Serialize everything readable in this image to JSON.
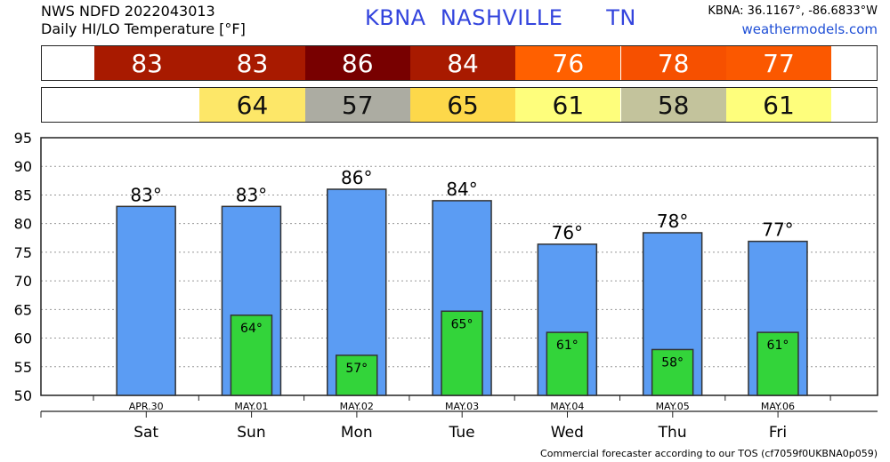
{
  "header": {
    "line1": "NWS NDFD 2022043013",
    "line2": "Daily HI/LO Temperature [°F]",
    "station": "KBNA",
    "city": "NASHVILLE",
    "state": "TN",
    "coords": "KBNA: 36.1167°, -86.6833°W",
    "site": "weathermodels.com"
  },
  "hi_strip": [
    {
      "value": "83",
      "color": "#a81a00"
    },
    {
      "value": "83",
      "color": "#a81a00"
    },
    {
      "value": "86",
      "color": "#780000"
    },
    {
      "value": "84",
      "color": "#a81a00"
    },
    {
      "value": "76",
      "color": "#ff6000"
    },
    {
      "value": "78",
      "color": "#f65000"
    },
    {
      "value": "77",
      "color": "#fb5800"
    }
  ],
  "lo_strip": [
    {
      "value": "",
      "color": "#ffffff"
    },
    {
      "value": "64",
      "color": "#fde768"
    },
    {
      "value": "57",
      "color": "#acaca2"
    },
    {
      "value": "65",
      "color": "#fdd84a"
    },
    {
      "value": "61",
      "color": "#fefe7c"
    },
    {
      "value": "58",
      "color": "#c3c39c"
    },
    {
      "value": "61",
      "color": "#fefe7c"
    }
  ],
  "chart_data": {
    "type": "bar",
    "categories": [
      "Sat",
      "Sun",
      "Mon",
      "Tue",
      "Wed",
      "Thu",
      "Fri"
    ],
    "dates": [
      "APR.30",
      "MAY.01",
      "MAY.02",
      "MAY.03",
      "MAY.04",
      "MAY.05",
      "MAY.06"
    ],
    "series": [
      {
        "values": [
          83,
          83,
          86,
          84,
          76.4,
          78.4,
          76.9
        ],
        "labels": [
          "83°",
          "83°",
          "86°",
          "84°",
          "76°",
          "78°",
          "77°"
        ],
        "color": "#5b9cf3"
      },
      {
        "values": [
          null,
          64,
          57,
          64.7,
          61,
          58,
          61
        ],
        "labels": [
          "",
          "64°",
          "57°",
          "65°",
          "61°",
          "58°",
          "61°"
        ],
        "color": "#33d43a"
      }
    ],
    "ylim": [
      50,
      95
    ],
    "yticks": [
      50,
      55,
      60,
      65,
      70,
      75,
      80,
      85,
      90,
      95
    ],
    "grid": true
  },
  "footer": "Commercial forecaster according to our TOS (cf7059f0UKBNA0p059)"
}
